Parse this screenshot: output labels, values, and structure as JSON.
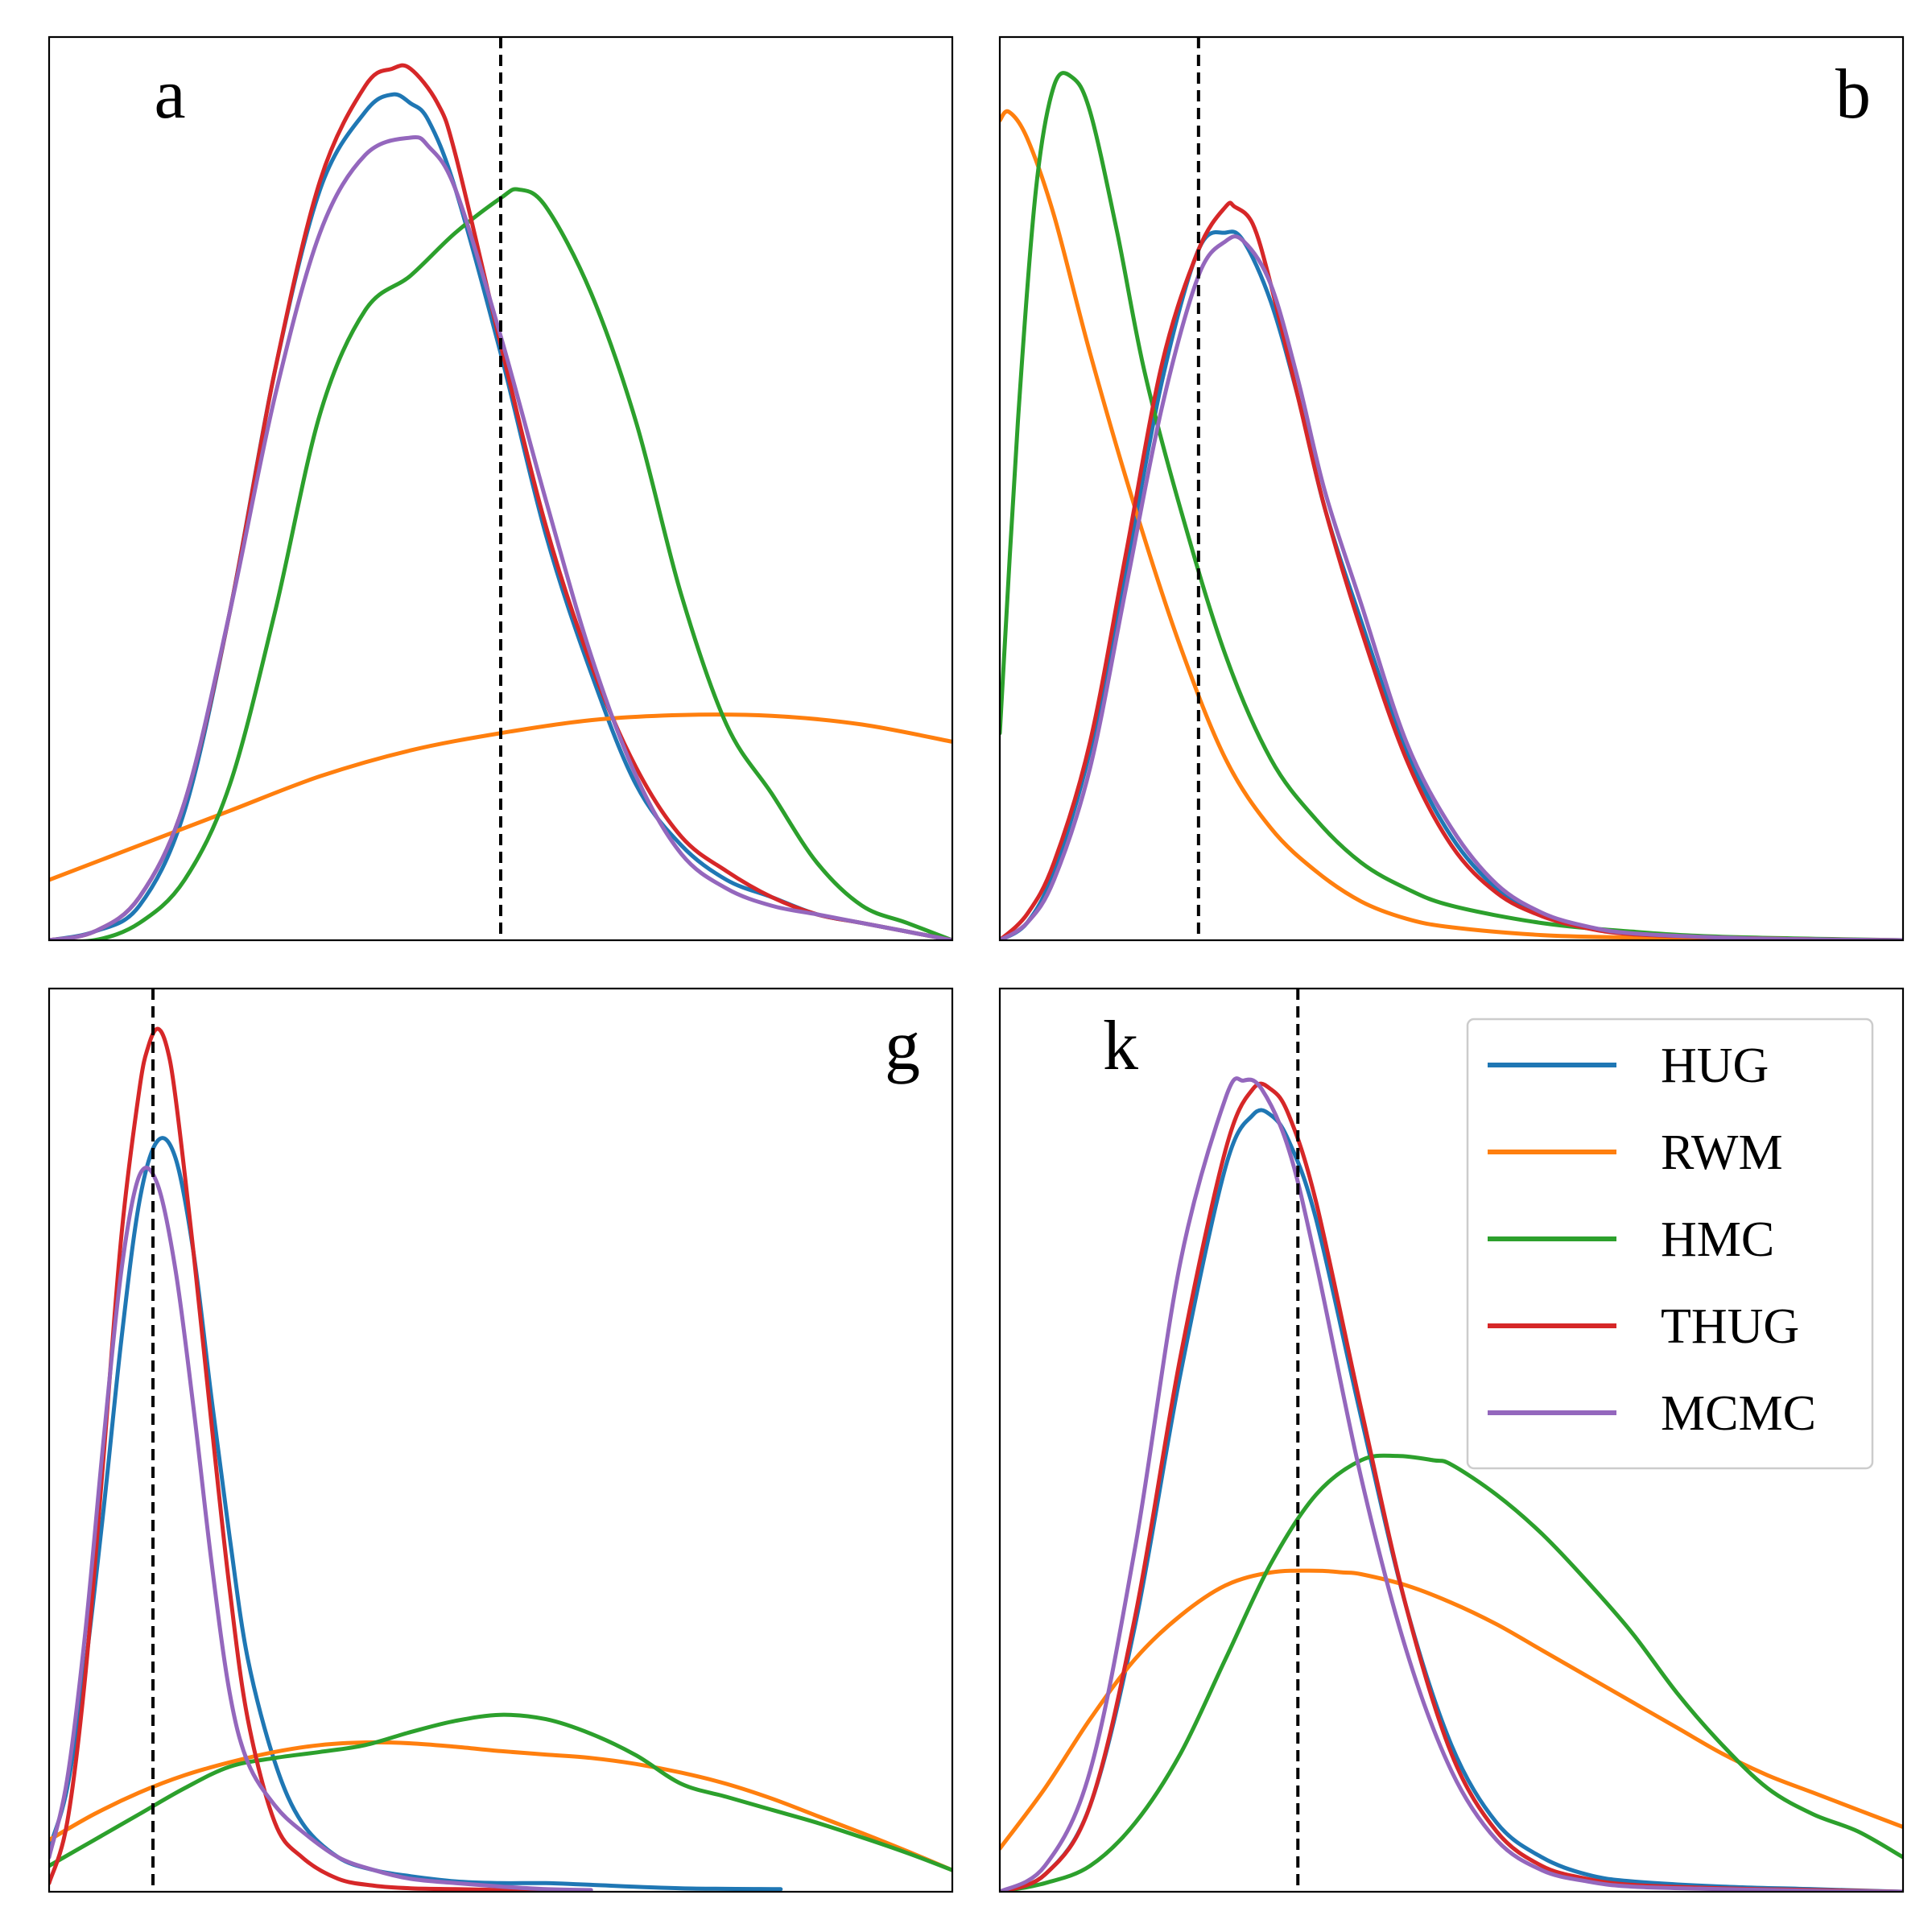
{
  "chart_data": [
    {
      "type": "line",
      "panel_label": "a",
      "label_position": "top-left",
      "x_range": [
        0,
        1
      ],
      "y_range": [
        0,
        1
      ],
      "reference_line_x": 0.5,
      "series": [
        {
          "name": "HUG",
          "color": "#1f77b4",
          "x": [
            0,
            0.05,
            0.1,
            0.15,
            0.2,
            0.25,
            0.3,
            0.35,
            0.38,
            0.4,
            0.42,
            0.45,
            0.5,
            0.55,
            0.6,
            0.65,
            0.7,
            0.75,
            0.8,
            0.85,
            0.9,
            1.0
          ],
          "y": [
            0.0,
            0.01,
            0.04,
            0.15,
            0.38,
            0.66,
            0.87,
            0.96,
            0.98,
            0.97,
            0.95,
            0.87,
            0.68,
            0.47,
            0.31,
            0.18,
            0.11,
            0.07,
            0.05,
            0.03,
            0.02,
            0.0
          ]
        },
        {
          "name": "RWM",
          "color": "#ff7f0e",
          "x": [
            0,
            0.1,
            0.2,
            0.3,
            0.4,
            0.5,
            0.6,
            0.7,
            0.8,
            0.9,
            1.0
          ],
          "y": [
            0.07,
            0.11,
            0.15,
            0.19,
            0.22,
            0.24,
            0.255,
            0.261,
            0.26,
            0.25,
            0.23
          ]
        },
        {
          "name": "HMC",
          "color": "#2ca02c",
          "x": [
            0,
            0.05,
            0.1,
            0.15,
            0.2,
            0.25,
            0.3,
            0.35,
            0.4,
            0.45,
            0.5,
            0.52,
            0.55,
            0.6,
            0.65,
            0.7,
            0.75,
            0.8,
            0.85,
            0.9,
            0.95,
            1.0
          ],
          "y": [
            0.0,
            0.0,
            0.02,
            0.07,
            0.18,
            0.38,
            0.61,
            0.73,
            0.77,
            0.82,
            0.86,
            0.87,
            0.85,
            0.75,
            0.6,
            0.4,
            0.25,
            0.17,
            0.09,
            0.04,
            0.02,
            0.0
          ]
        },
        {
          "name": "THUG",
          "color": "#d62728",
          "x": [
            0,
            0.05,
            0.1,
            0.15,
            0.2,
            0.25,
            0.3,
            0.35,
            0.38,
            0.4,
            0.43,
            0.45,
            0.5,
            0.55,
            0.6,
            0.65,
            0.7,
            0.75,
            0.8,
            0.85,
            0.9,
            1.0
          ],
          "y": [
            0.0,
            0.01,
            0.05,
            0.16,
            0.38,
            0.66,
            0.88,
            0.99,
            1.01,
            1.01,
            0.97,
            0.91,
            0.69,
            0.48,
            0.32,
            0.2,
            0.12,
            0.08,
            0.05,
            0.03,
            0.02,
            0.0
          ]
        },
        {
          "name": "MCMC",
          "color": "#9467bd",
          "x": [
            0,
            0.05,
            0.1,
            0.15,
            0.2,
            0.25,
            0.3,
            0.35,
            0.4,
            0.42,
            0.45,
            0.5,
            0.55,
            0.6,
            0.65,
            0.7,
            0.75,
            0.8,
            0.85,
            0.9,
            1.0
          ],
          "y": [
            0.0,
            0.01,
            0.05,
            0.16,
            0.38,
            0.63,
            0.82,
            0.91,
            0.93,
            0.92,
            0.87,
            0.7,
            0.51,
            0.33,
            0.19,
            0.1,
            0.06,
            0.04,
            0.03,
            0.02,
            0.0
          ]
        }
      ]
    },
    {
      "type": "line",
      "panel_label": "b",
      "label_position": "top-right",
      "x_range": [
        0,
        1
      ],
      "y_range": [
        0,
        1
      ],
      "reference_line_x": 0.22,
      "series": [
        {
          "name": "HUG",
          "color": "#1f77b4",
          "x": [
            0,
            0.03,
            0.06,
            0.1,
            0.14,
            0.18,
            0.22,
            0.25,
            0.27,
            0.3,
            0.33,
            0.36,
            0.4,
            0.45,
            0.5,
            0.55,
            0.6,
            0.65,
            0.7,
            0.8,
            0.9,
            1.0
          ],
          "y": [
            0.0,
            0.02,
            0.08,
            0.22,
            0.43,
            0.65,
            0.8,
            0.82,
            0.81,
            0.74,
            0.63,
            0.5,
            0.37,
            0.22,
            0.12,
            0.06,
            0.03,
            0.015,
            0.008,
            0.003,
            0.001,
            0.0
          ]
        },
        {
          "name": "RWM",
          "color": "#ff7f0e",
          "x": [
            0,
            0.01,
            0.03,
            0.06,
            0.1,
            0.15,
            0.2,
            0.25,
            0.3,
            0.35,
            0.4,
            0.45,
            0.5,
            0.6,
            0.7,
            0.8,
            1.0
          ],
          "y": [
            0.95,
            0.96,
            0.93,
            0.84,
            0.68,
            0.5,
            0.34,
            0.21,
            0.13,
            0.08,
            0.045,
            0.025,
            0.015,
            0.006,
            0.003,
            0.001,
            0.0
          ]
        },
        {
          "name": "HMC",
          "color": "#2ca02c",
          "x": [
            0,
            0.02,
            0.04,
            0.06,
            0.08,
            0.1,
            0.13,
            0.16,
            0.2,
            0.25,
            0.3,
            0.35,
            0.4,
            0.45,
            0.5,
            0.6,
            0.7,
            0.8,
            1.0
          ],
          "y": [
            0.24,
            0.6,
            0.87,
            0.99,
            1.0,
            0.96,
            0.82,
            0.66,
            0.5,
            0.33,
            0.21,
            0.14,
            0.09,
            0.06,
            0.04,
            0.02,
            0.01,
            0.004,
            0.0
          ]
        },
        {
          "name": "THUG",
          "color": "#d62728",
          "x": [
            0,
            0.03,
            0.06,
            0.1,
            0.14,
            0.18,
            0.22,
            0.25,
            0.26,
            0.28,
            0.3,
            0.33,
            0.36,
            0.4,
            0.45,
            0.5,
            0.55,
            0.6,
            0.65,
            0.7,
            0.8,
            0.9,
            1.0
          ],
          "y": [
            0.0,
            0.03,
            0.09,
            0.23,
            0.45,
            0.67,
            0.8,
            0.85,
            0.85,
            0.83,
            0.76,
            0.63,
            0.5,
            0.36,
            0.21,
            0.11,
            0.055,
            0.028,
            0.014,
            0.007,
            0.003,
            0.001,
            0.0
          ]
        },
        {
          "name": "MCMC",
          "color": "#9467bd",
          "x": [
            0,
            0.03,
            0.06,
            0.1,
            0.14,
            0.18,
            0.22,
            0.25,
            0.27,
            0.3,
            0.33,
            0.36,
            0.4,
            0.45,
            0.5,
            0.55,
            0.6,
            0.65,
            0.7,
            0.8,
            0.9,
            1.0
          ],
          "y": [
            0.0,
            0.02,
            0.07,
            0.2,
            0.41,
            0.62,
            0.77,
            0.81,
            0.81,
            0.76,
            0.65,
            0.52,
            0.39,
            0.23,
            0.13,
            0.065,
            0.032,
            0.016,
            0.008,
            0.003,
            0.001,
            0.0
          ]
        }
      ]
    },
    {
      "type": "line",
      "panel_label": "g",
      "label_position": "top-right",
      "x_range": [
        0,
        1
      ],
      "y_range": [
        0,
        1
      ],
      "reference_line_x": 0.115,
      "series": [
        {
          "name": "HUG",
          "color": "#1f77b4",
          "x": [
            0,
            0.02,
            0.04,
            0.06,
            0.08,
            0.1,
            0.12,
            0.14,
            0.16,
            0.18,
            0.2,
            0.22,
            0.25,
            0.28,
            0.32,
            0.36,
            0.4,
            0.45,
            0.5,
            0.55,
            0.6,
            0.7,
            0.81
          ],
          "y": [
            0.05,
            0.12,
            0.26,
            0.44,
            0.64,
            0.8,
            0.87,
            0.85,
            0.74,
            0.57,
            0.41,
            0.27,
            0.15,
            0.08,
            0.04,
            0.025,
            0.018,
            0.012,
            0.01,
            0.01,
            0.008,
            0.004,
            0.003
          ]
        },
        {
          "name": "RWM",
          "color": "#ff7f0e",
          "x": [
            0,
            0.05,
            0.1,
            0.15,
            0.2,
            0.25,
            0.3,
            0.35,
            0.4,
            0.45,
            0.5,
            0.55,
            0.6,
            0.65,
            0.7,
            0.75,
            0.8,
            0.85,
            0.9,
            0.95,
            1.0
          ],
          "y": [
            0.06,
            0.09,
            0.115,
            0.135,
            0.15,
            0.162,
            0.17,
            0.173,
            0.172,
            0.168,
            0.163,
            0.159,
            0.155,
            0.148,
            0.138,
            0.125,
            0.108,
            0.088,
            0.068,
            0.047,
            0.025
          ]
        },
        {
          "name": "HMC",
          "color": "#2ca02c",
          "x": [
            0,
            0.05,
            0.1,
            0.15,
            0.2,
            0.25,
            0.3,
            0.35,
            0.4,
            0.45,
            0.5,
            0.55,
            0.6,
            0.65,
            0.7,
            0.75,
            0.8,
            0.85,
            0.9,
            0.95,
            1.0
          ],
          "y": [
            0.03,
            0.06,
            0.09,
            0.12,
            0.145,
            0.155,
            0.162,
            0.17,
            0.185,
            0.198,
            0.205,
            0.2,
            0.183,
            0.158,
            0.125,
            0.11,
            0.095,
            0.08,
            0.063,
            0.045,
            0.025
          ]
        },
        {
          "name": "THUG",
          "color": "#d62728",
          "x": [
            0,
            0.02,
            0.04,
            0.06,
            0.08,
            0.1,
            0.11,
            0.12,
            0.13,
            0.14,
            0.16,
            0.18,
            0.2,
            0.22,
            0.25,
            0.28,
            0.32,
            0.36,
            0.4,
            0.45,
            0.5,
            0.55,
            0.6
          ],
          "y": [
            0.01,
            0.08,
            0.25,
            0.5,
            0.76,
            0.93,
            0.98,
            1.0,
            0.98,
            0.92,
            0.74,
            0.54,
            0.35,
            0.2,
            0.08,
            0.04,
            0.015,
            0.007,
            0.004,
            0.003,
            0.002,
            0.001,
            0.0
          ]
        },
        {
          "name": "MCMC",
          "color": "#9467bd",
          "x": [
            0,
            0.02,
            0.04,
            0.06,
            0.08,
            0.1,
            0.12,
            0.14,
            0.16,
            0.18,
            0.2,
            0.22,
            0.25,
            0.28,
            0.32,
            0.36,
            0.4,
            0.45,
            0.5,
            0.55,
            0.6
          ],
          "y": [
            0.04,
            0.13,
            0.3,
            0.52,
            0.72,
            0.83,
            0.82,
            0.72,
            0.56,
            0.38,
            0.23,
            0.15,
            0.1,
            0.07,
            0.04,
            0.025,
            0.015,
            0.01,
            0.006,
            0.003,
            0.002
          ]
        }
      ]
    },
    {
      "type": "line",
      "panel_label": "k",
      "label_position": "top-left",
      "x_range": [
        0,
        1
      ],
      "y_range": [
        0,
        1
      ],
      "reference_line_x": 0.33,
      "legend": {
        "position": "top-right",
        "items": [
          "HUG",
          "RWM",
          "HMC",
          "THUG",
          "MCMC"
        ]
      },
      "series": [
        {
          "name": "HUG",
          "color": "#1f77b4",
          "x": [
            0,
            0.05,
            0.1,
            0.15,
            0.2,
            0.25,
            0.28,
            0.3,
            0.32,
            0.35,
            0.4,
            0.45,
            0.5,
            0.55,
            0.6,
            0.65,
            0.7,
            0.8,
            0.9,
            1.0
          ],
          "y": [
            0.0,
            0.02,
            0.1,
            0.31,
            0.6,
            0.84,
            0.9,
            0.9,
            0.87,
            0.78,
            0.55,
            0.33,
            0.17,
            0.08,
            0.04,
            0.02,
            0.012,
            0.006,
            0.003,
            0.0
          ]
        },
        {
          "name": "RWM",
          "color": "#ff7f0e",
          "x": [
            0,
            0.05,
            0.1,
            0.15,
            0.2,
            0.25,
            0.3,
            0.35,
            0.38,
            0.4,
            0.45,
            0.5,
            0.55,
            0.6,
            0.65,
            0.7,
            0.75,
            0.8,
            0.85,
            0.9,
            0.95,
            1.0
          ],
          "y": [
            0.05,
            0.12,
            0.2,
            0.27,
            0.32,
            0.355,
            0.37,
            0.372,
            0.37,
            0.368,
            0.355,
            0.335,
            0.31,
            0.28,
            0.25,
            0.22,
            0.19,
            0.16,
            0.135,
            0.115,
            0.095,
            0.075
          ]
        },
        {
          "name": "HMC",
          "color": "#2ca02c",
          "x": [
            0,
            0.05,
            0.1,
            0.15,
            0.2,
            0.25,
            0.3,
            0.35,
            0.4,
            0.44,
            0.48,
            0.5,
            0.55,
            0.6,
            0.65,
            0.7,
            0.75,
            0.8,
            0.85,
            0.9,
            0.95,
            1.0
          ],
          "y": [
            0.0,
            0.01,
            0.03,
            0.08,
            0.16,
            0.27,
            0.38,
            0.46,
            0.5,
            0.505,
            0.5,
            0.495,
            0.46,
            0.415,
            0.36,
            0.3,
            0.23,
            0.17,
            0.12,
            0.09,
            0.07,
            0.04
          ]
        },
        {
          "name": "THUG",
          "color": "#d62728",
          "x": [
            0,
            0.05,
            0.1,
            0.15,
            0.2,
            0.25,
            0.28,
            0.3,
            0.32,
            0.35,
            0.4,
            0.45,
            0.5,
            0.55,
            0.6,
            0.65,
            0.7,
            0.8,
            0.9,
            1.0
          ],
          "y": [
            0.0,
            0.02,
            0.1,
            0.32,
            0.62,
            0.86,
            0.93,
            0.93,
            0.9,
            0.8,
            0.56,
            0.33,
            0.16,
            0.07,
            0.03,
            0.015,
            0.008,
            0.004,
            0.002,
            0.0
          ]
        },
        {
          "name": "MCMC",
          "color": "#9467bd",
          "x": [
            0,
            0.05,
            0.1,
            0.15,
            0.2,
            0.25,
            0.27,
            0.29,
            0.32,
            0.35,
            0.4,
            0.45,
            0.5,
            0.55,
            0.6,
            0.65,
            0.7,
            0.8,
            0.9,
            1.0
          ],
          "y": [
            0.0,
            0.03,
            0.14,
            0.4,
            0.73,
            0.92,
            0.94,
            0.93,
            0.86,
            0.73,
            0.48,
            0.28,
            0.14,
            0.06,
            0.025,
            0.012,
            0.006,
            0.003,
            0.001,
            0.0
          ]
        }
      ]
    }
  ]
}
